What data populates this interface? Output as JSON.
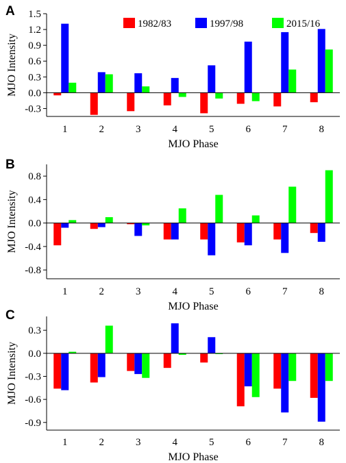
{
  "colors": {
    "1982/83": "#ff0000",
    "1997/98": "#0000ff",
    "2015/16": "#00ff00"
  },
  "legend": [
    "1982/83",
    "1997/98",
    "2015/16"
  ],
  "chart_data": [
    {
      "type": "bar",
      "panel": "A",
      "categories": [
        "1",
        "2",
        "3",
        "4",
        "5",
        "6",
        "7",
        "8"
      ],
      "xlabel": "MJO Phase",
      "ylabel": "MJO Intensity",
      "ylim": [
        -0.45,
        1.5
      ],
      "yticks": [
        "-0.3",
        "0.0",
        "0.3",
        "0.6",
        "0.9",
        "1.2",
        "1.5"
      ],
      "series": [
        {
          "name": "1982/83",
          "values": [
            -0.05,
            -0.42,
            -0.35,
            -0.24,
            -0.39,
            -0.21,
            -0.26,
            -0.18
          ]
        },
        {
          "name": "1997/98",
          "values": [
            1.31,
            0.39,
            0.37,
            0.28,
            0.52,
            0.97,
            1.15,
            1.21
          ]
        },
        {
          "name": "2015/16",
          "values": [
            0.19,
            0.35,
            0.12,
            -0.08,
            -0.11,
            -0.16,
            0.44,
            0.82
          ]
        }
      ]
    },
    {
      "type": "bar",
      "panel": "B",
      "categories": [
        "1",
        "2",
        "3",
        "4",
        "5",
        "6",
        "7",
        "8"
      ],
      "xlabel": "MJO Phase",
      "ylabel": "MJO Intensity",
      "ylim": [
        -0.95,
        1.0
      ],
      "yticks": [
        "-0.8",
        "-0.4",
        "0.0",
        "0.4",
        "0.8"
      ],
      "series": [
        {
          "name": "1982/83",
          "values": [
            -0.38,
            -0.1,
            -0.02,
            -0.28,
            -0.28,
            -0.33,
            -0.28,
            -0.17
          ]
        },
        {
          "name": "1997/98",
          "values": [
            -0.08,
            -0.07,
            -0.22,
            -0.28,
            -0.55,
            -0.38,
            -0.51,
            -0.32
          ]
        },
        {
          "name": "2015/16",
          "values": [
            0.05,
            0.1,
            -0.04,
            0.25,
            0.48,
            0.13,
            0.62,
            0.9
          ]
        }
      ]
    },
    {
      "type": "bar",
      "panel": "C",
      "categories": [
        "1",
        "2",
        "3",
        "4",
        "5",
        "6",
        "7",
        "8"
      ],
      "xlabel": "MJO Phase",
      "ylabel": "MJO Intensity",
      "ylim": [
        -1.0,
        0.48
      ],
      "yticks": [
        "-0.9",
        "-0.6",
        "-0.3",
        "0.0",
        "0.3"
      ],
      "series": [
        {
          "name": "1982/83",
          "values": [
            -0.46,
            -0.38,
            -0.23,
            -0.19,
            -0.12,
            -0.69,
            -0.46,
            -0.58
          ]
        },
        {
          "name": "1997/98",
          "values": [
            -0.48,
            -0.31,
            -0.27,
            0.39,
            0.21,
            -0.43,
            -0.77,
            -0.89
          ]
        },
        {
          "name": "2015/16",
          "values": [
            0.02,
            0.36,
            -0.32,
            -0.02,
            -0.01,
            -0.57,
            -0.36,
            -0.36
          ]
        }
      ]
    }
  ]
}
